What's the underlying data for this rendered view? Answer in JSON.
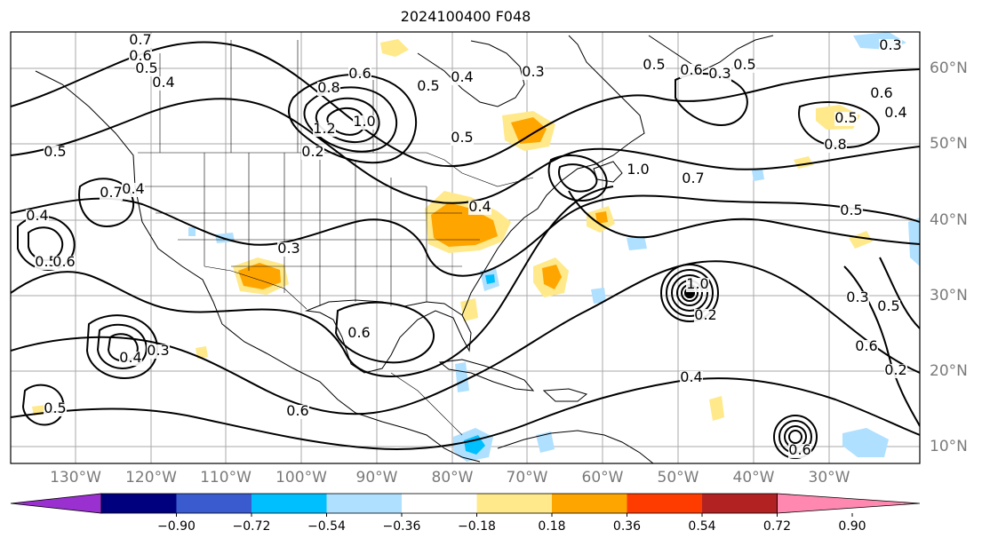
{
  "title": "2024100400 F048",
  "longitude_labels": [
    "130°W",
    "120°W",
    "110°W",
    "100°W",
    "90°W",
    "80°W",
    "70°W",
    "60°W",
    "50°W",
    "40°W",
    "30°W"
  ],
  "latitude_labels": [
    "60°N",
    "50°N",
    "40°N",
    "30°N",
    "20°N",
    "10°N"
  ],
  "contour_labels": [
    "0.7",
    "0.6",
    "0.5",
    "0.4",
    "0.8",
    "0.6",
    "1.2",
    "1.0",
    "0.2",
    "0.5",
    "0.4",
    "0.3",
    "0.5",
    "0.7",
    "0.4",
    "0.4",
    "0.5",
    "0.6",
    "0.3",
    "0.5",
    "0.4",
    "0.6",
    "0.5",
    "0.3",
    "0.5",
    "0.6",
    "0.4",
    "0.5",
    "0.8",
    "1.0",
    "0.7",
    "0.5",
    "0.6",
    "0.4",
    "0.3",
    "0.5",
    "0.6",
    "0.4",
    "0.2",
    "0.2",
    "0.3",
    "1.0",
    "0.6",
    "0.3",
    "0.5",
    "0.6"
  ],
  "colorbar": {
    "ticks": [
      "−0.90",
      "−0.72",
      "−0.54",
      "−0.36",
      "−0.18",
      "0.18",
      "0.36",
      "0.54",
      "0.72",
      "0.90"
    ],
    "colors": [
      "#9b30d0",
      "#00007f",
      "#3a5bd0",
      "#00bfff",
      "#afe0ff",
      "#ffffff",
      "#ffe98a",
      "#ffa500",
      "#ff3c00",
      "#b22222",
      "#ff88b0"
    ]
  }
}
